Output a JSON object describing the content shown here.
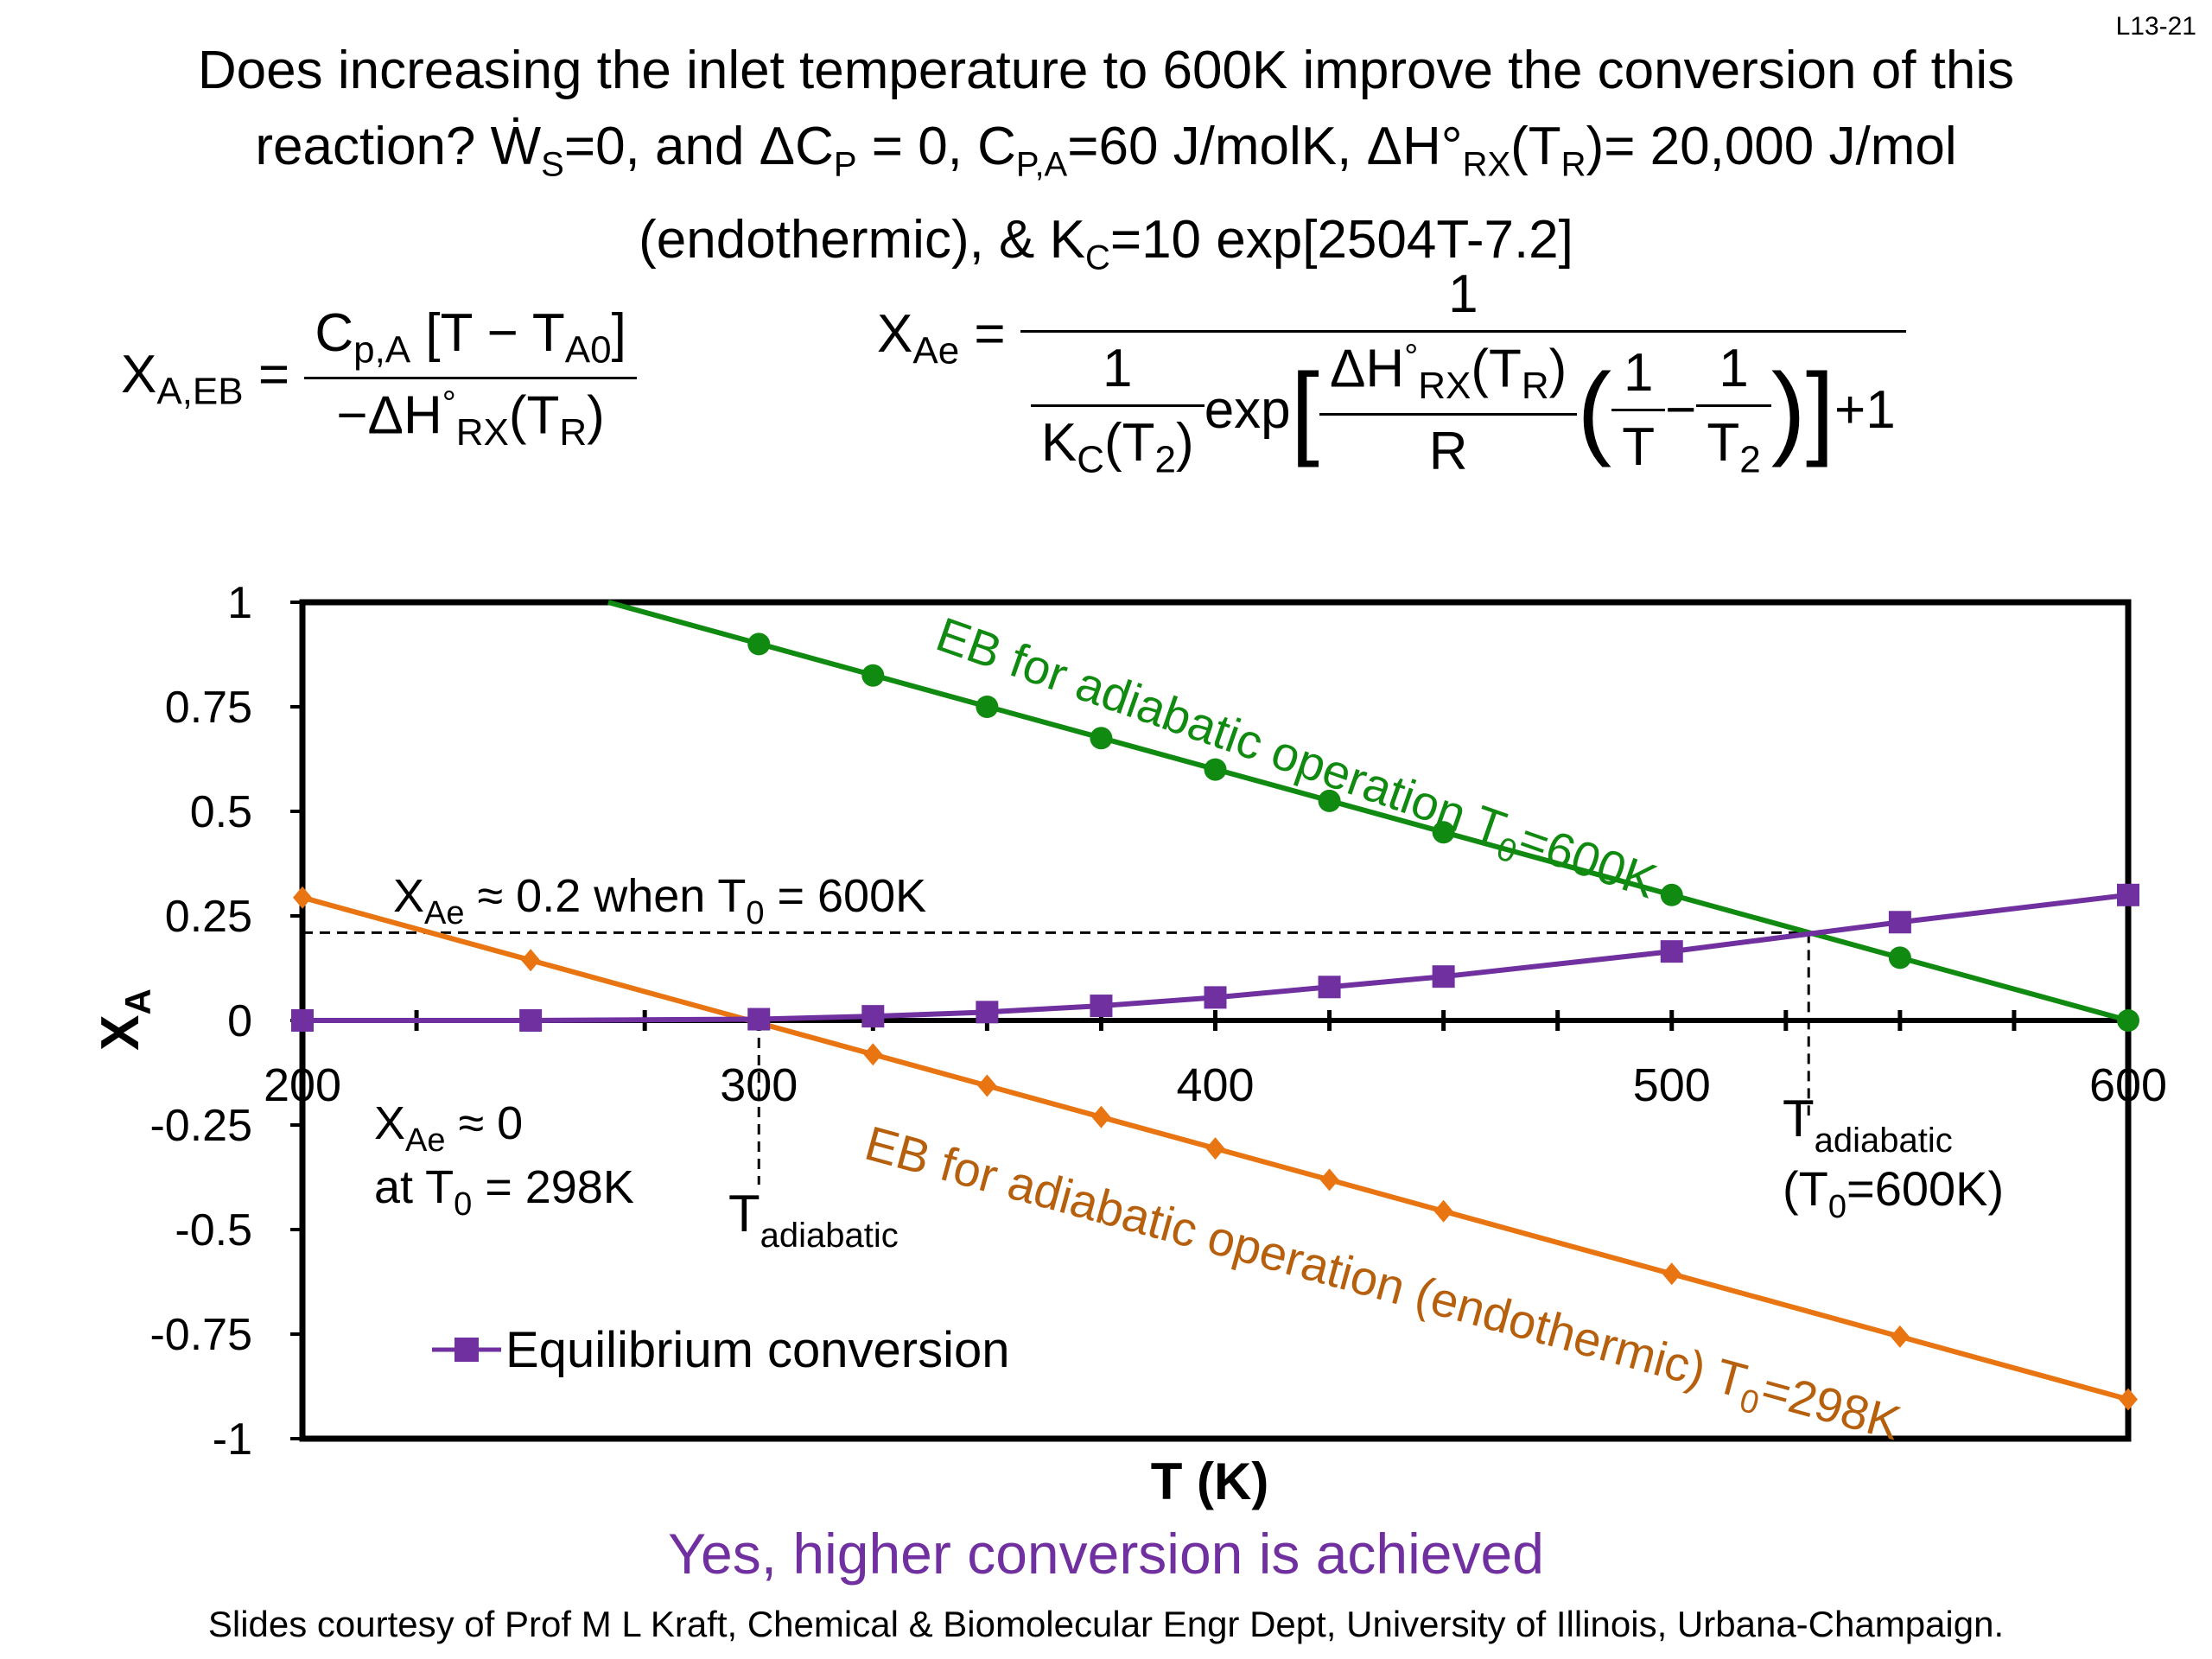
{
  "slide_number": "L13-21",
  "title": {
    "line1": "Does increasing the inlet temperature to 600K improve the conversion of this",
    "line2_a": "reaction?  Ẇ",
    "line2_sub1": "S",
    "line2_b": "=0, and ΔC",
    "line2_sub2": "P",
    "line2_c": " = 0, C",
    "line2_sub3": "P,A",
    "line2_d": "=60 J/molK, ΔH°",
    "line2_sub4": "RX",
    "line2_e": "(T",
    "line2_sub5": "R",
    "line2_f": ")= 20,000 J/mol",
    "line3_a": "(endothermic), &  K",
    "line3_sub": "C",
    "line3_b": "=10 exp[2504T-7.2]"
  },
  "equations": {
    "eb": {
      "lhs": "X",
      "lhs_sub": "A,EB",
      "eq": "=",
      "num_a": "C",
      "num_sub": "p,A",
      "num_b": " [T − T",
      "num_sub2": "A0",
      "num_c": "]",
      "den_a": "−ΔH",
      "den_sup": "°",
      "den_sub": "RX",
      "den_b": "(T",
      "den_sub2": "R",
      "den_c": ")"
    },
    "eq": {
      "lhs": "X",
      "lhs_sub": "Ae",
      "eq": "=",
      "numerator": "1",
      "inner_num": "1",
      "inner_den_a": "K",
      "inner_den_sub": "C",
      "inner_den_b": "(T",
      "inner_den_sub2": "2",
      "inner_den_c": ")",
      "exp": "exp",
      "dh_a": "ΔH",
      "dh_sup": "°",
      "dh_sub": "RX",
      "dh_b": "(T",
      "dh_sub2": "R",
      "dh_c": ")",
      "r": "R",
      "one_a": "1",
      "t": "T",
      "minus": "−",
      "one_b": "1",
      "t2": "T",
      "t2_sub": "2",
      "plus_one": "+1"
    }
  },
  "colors": {
    "green": "#108a10",
    "orange": "#e87511",
    "purple": "#7030a0",
    "brown_label": "#b65f0c"
  },
  "chart_data": {
    "type": "line",
    "xlabel": "T (K)",
    "ylabel": "X",
    "ylabel_sub": "A",
    "xlim": [
      200,
      600
    ],
    "ylim": [
      -1,
      1
    ],
    "x_ticks": [
      "200",
      "300",
      "400",
      "500",
      "600"
    ],
    "y_ticks": [
      "1",
      "0.75",
      "0.5",
      "0.25",
      "0",
      "-0.25",
      "-0.5",
      "-0.75",
      "-1"
    ],
    "series": [
      {
        "name": "EB for adiabatic operation T0=600K",
        "color": "#108a10",
        "marker": "circle",
        "x": [
          300,
          325,
          350,
          375,
          400,
          425,
          450,
          500,
          550,
          600
        ],
        "y": [
          0.9,
          0.825,
          0.75,
          0.675,
          0.6,
          0.525,
          0.45,
          0.3,
          0.15,
          0
        ],
        "line_x": [
          267,
          600
        ],
        "line_y": [
          1.0,
          0
        ]
      },
      {
        "name": "EB for adiabatic operation (endothermic) T0=298K",
        "color": "#e87511",
        "marker": "diamond",
        "x": [
          200,
          250,
          325,
          350,
          375,
          400,
          425,
          450,
          500,
          550,
          600
        ],
        "y": [
          0.294,
          0.144,
          -0.081,
          -0.156,
          -0.231,
          -0.306,
          -0.381,
          -0.456,
          -0.606,
          -0.756,
          -0.906
        ]
      },
      {
        "name": "Equilibrium conversion",
        "color": "#7030a0",
        "marker": "square",
        "x": [
          200,
          250,
          300,
          325,
          350,
          375,
          400,
          425,
          450,
          500,
          550,
          600
        ],
        "y": [
          0.0,
          0.0,
          0.003,
          0.01,
          0.02,
          0.035,
          0.055,
          0.08,
          0.105,
          0.165,
          0.235,
          0.3
        ]
      }
    ],
    "annotations": {
      "xae_600_a": "X",
      "xae_600_sub": "Ae",
      "xae_600_b": " ≈ 0.2 when T",
      "xae_600_sub2": "0",
      "xae_600_c": " = 600K",
      "xae_0_a": "X",
      "xae_0_sub": "Ae",
      "xae_0_b": " ≈ 0",
      "at_a": "at T",
      "at_sub": "0",
      "at_b": " = 298K",
      "tad1_a": "T",
      "tad1_sub": "adiabatic",
      "tad2_a": "T",
      "tad2_sub": "adiabatic",
      "tad2_paren_a": "(T",
      "tad2_paren_sub": "0",
      "tad2_paren_b": "=600K)",
      "green_label_a": "EB for adiabatic operation T",
      "green_label_sub": "0",
      "green_label_b": "=600K",
      "orange_label_a": "EB for adiabatic operation (endothermic) T",
      "orange_label_sub": "0",
      "orange_label_b": "=298K",
      "legend": "Equilibrium conversion",
      "dashed_upper_T": 530,
      "dashed_upper_X": 0.21,
      "dashed_lower_T": 300,
      "dashed_lower_X": 0.0
    }
  },
  "footer": {
    "conclusion": "Yes, higher conversion is achieved",
    "credit": "Slides courtesy of Prof M L Kraft, Chemical & Biomolecular Engr Dept, University of Illinois, Urbana-Champaign."
  }
}
